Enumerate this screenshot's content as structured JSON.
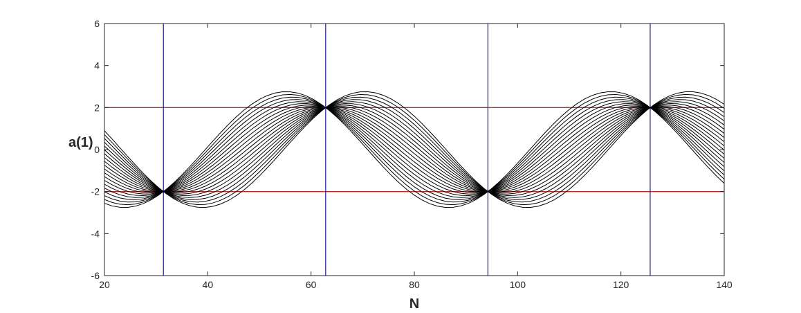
{
  "chart_data": {
    "type": "line",
    "title": "",
    "xlabel": "N",
    "ylabel": "a(1)",
    "xlim": [
      20,
      140
    ],
    "ylim": [
      -6,
      6
    ],
    "xticks": [
      20,
      40,
      60,
      80,
      100,
      120,
      140
    ],
    "yticks": [
      -6,
      -4,
      -2,
      0,
      2,
      4,
      6
    ],
    "grid": false,
    "legend": "none",
    "family": {
      "description_formula": "a(N) = 2*cos(2*pi*N/(20*pi)) + A*sin(2*pi*N/(20*pi))",
      "period": 62.8319,
      "amplitude_coefficients": [
        -1.9,
        -1.7,
        -1.5,
        -1.3,
        -1.1,
        -0.9,
        -0.7,
        -0.5,
        -0.3,
        -0.1,
        0.1,
        0.3,
        0.5,
        0.7,
        0.9,
        1.1,
        1.3,
        1.5,
        1.7,
        1.9
      ],
      "sample_step": 1.5,
      "color": "#000000"
    },
    "reference_lines": {
      "horizontal": [
        {
          "y": 2,
          "color": "#cc0000"
        },
        {
          "y": -2,
          "color": "#cc0000"
        }
      ],
      "vertical": [
        {
          "x": 31.4159,
          "color": "#1a1aa6"
        },
        {
          "x": 62.8319,
          "color": "#1a1aa6"
        },
        {
          "x": 94.2478,
          "color": "#1a1aa6"
        },
        {
          "x": 125.6637,
          "color": "#1a1aa6"
        }
      ]
    },
    "colors": {
      "axes": "#262626",
      "background": "#ffffff"
    }
  }
}
